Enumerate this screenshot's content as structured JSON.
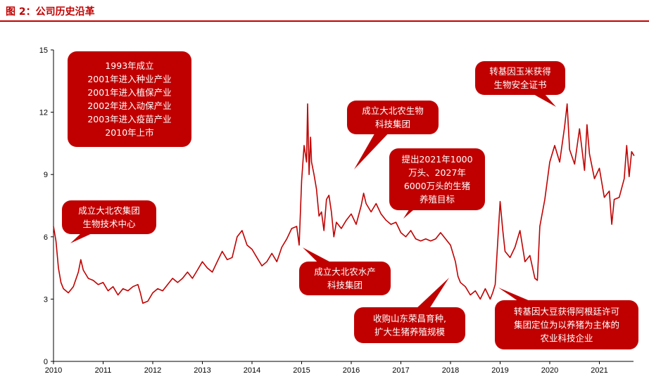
{
  "header": {
    "title": "图 2：公司历史沿革"
  },
  "chart_data": {
    "type": "line",
    "xlabel": "",
    "ylabel": "",
    "xlim": [
      2010.0,
      2021.72
    ],
    "ylim": [
      0,
      15
    ],
    "x_ticks": [
      "2010",
      "2011",
      "2012",
      "2013",
      "2014",
      "2015",
      "2016",
      "2017",
      "2018",
      "2019",
      "2020",
      "2021"
    ],
    "y_ticks": [
      "0",
      "3",
      "6",
      "9",
      "12",
      "15"
    ],
    "legend": "none",
    "grid": false,
    "line_color": "#c00000",
    "series": [
      {
        "x": [
          2010.0,
          2010.05,
          2010.1,
          2010.15,
          2010.2,
          2010.3,
          2010.4,
          2010.5,
          2010.55,
          2010.6,
          2010.7,
          2010.8,
          2010.9,
          2011.0,
          2011.1,
          2011.2,
          2011.3,
          2011.4,
          2011.5,
          2011.6,
          2011.7,
          2011.75,
          2011.8,
          2011.9,
          2012.0,
          2012.1,
          2012.2,
          2012.3,
          2012.4,
          2012.5,
          2012.6,
          2012.7,
          2012.8,
          2012.9,
          2013.0,
          2013.1,
          2013.2,
          2013.3,
          2013.4,
          2013.5,
          2013.6,
          2013.7,
          2013.8,
          2013.9,
          2014.0,
          2014.1,
          2014.2,
          2014.3,
          2014.4,
          2014.5,
          2014.6,
          2014.7,
          2014.8,
          2014.9,
          2014.95,
          2015.0,
          2015.05,
          2015.1,
          2015.12,
          2015.15,
          2015.18,
          2015.2,
          2015.25,
          2015.3,
          2015.35,
          2015.4,
          2015.45,
          2015.5,
          2015.55,
          2015.6,
          2015.65,
          2015.7,
          2015.8,
          2015.9,
          2016.0,
          2016.1,
          2016.2,
          2016.25,
          2016.3,
          2016.4,
          2016.5,
          2016.6,
          2016.7,
          2016.8,
          2016.9,
          2017.0,
          2017.1,
          2017.2,
          2017.3,
          2017.4,
          2017.5,
          2017.6,
          2017.7,
          2017.8,
          2017.9,
          2018.0,
          2018.1,
          2018.15,
          2018.2,
          2018.3,
          2018.4,
          2018.5,
          2018.6,
          2018.7,
          2018.8,
          2018.85,
          2018.9,
          2019.0,
          2019.05,
          2019.1,
          2019.2,
          2019.3,
          2019.4,
          2019.5,
          2019.6,
          2019.7,
          2019.75,
          2019.8,
          2019.9,
          2020.0,
          2020.1,
          2020.2,
          2020.3,
          2020.35,
          2020.4,
          2020.5,
          2020.6,
          2020.7,
          2020.75,
          2020.8,
          2020.9,
          2021.0,
          2021.1,
          2021.2,
          2021.25,
          2021.3,
          2021.4,
          2021.5,
          2021.55,
          2021.6,
          2021.65,
          2021.7
        ],
        "values": [
          6.5,
          5.8,
          4.5,
          3.8,
          3.5,
          3.3,
          3.6,
          4.3,
          4.9,
          4.4,
          4.0,
          3.9,
          3.7,
          3.8,
          3.4,
          3.6,
          3.2,
          3.5,
          3.4,
          3.6,
          3.7,
          3.3,
          2.8,
          2.9,
          3.3,
          3.5,
          3.4,
          3.7,
          4.0,
          3.8,
          4.0,
          4.3,
          4.0,
          4.4,
          4.8,
          4.5,
          4.3,
          4.8,
          5.3,
          4.9,
          5.0,
          6.0,
          6.3,
          5.6,
          5.4,
          5.0,
          4.6,
          4.8,
          5.2,
          4.8,
          5.5,
          5.9,
          6.4,
          6.5,
          5.6,
          8.7,
          10.4,
          9.6,
          12.4,
          9.0,
          10.8,
          9.6,
          9.0,
          8.3,
          7.0,
          7.2,
          6.3,
          7.8,
          8.0,
          7.2,
          6.0,
          6.7,
          6.4,
          6.8,
          7.1,
          6.6,
          7.5,
          8.1,
          7.6,
          7.2,
          7.6,
          7.1,
          6.8,
          6.6,
          6.7,
          6.2,
          6.0,
          6.3,
          5.9,
          5.8,
          5.9,
          5.8,
          5.9,
          6.2,
          5.9,
          5.6,
          4.8,
          4.1,
          3.8,
          3.6,
          3.2,
          3.4,
          3.0,
          3.5,
          3.0,
          3.3,
          3.7,
          7.7,
          6.4,
          5.3,
          5.0,
          5.5,
          6.3,
          4.8,
          5.1,
          4.0,
          3.9,
          6.5,
          7.8,
          9.6,
          10.4,
          9.6,
          11.3,
          12.4,
          10.2,
          9.5,
          11.2,
          9.2,
          11.4,
          10.0,
          8.8,
          9.3,
          7.9,
          8.2,
          6.6,
          7.8,
          7.9,
          8.8,
          10.4,
          8.9,
          10.1,
          9.9
        ]
      }
    ],
    "annotations": [
      {
        "lines": [
          "1993年成立",
          "2001年进入种业产业",
          "2001年进入植保产业",
          "2002年进入动保产业",
          "2003年进入疫苗产业",
          "2010年上市"
        ]
      },
      {
        "lines": [
          "成立大北农集团",
          "生物技术中心"
        ]
      },
      {
        "lines": [
          "成立大北农水产",
          "科技集团"
        ]
      },
      {
        "lines": [
          "成立大北农生物",
          "科技集团"
        ]
      },
      {
        "lines": [
          "提出2021年1000",
          "万头、2027年",
          "6000万头的生猪",
          "养殖目标"
        ]
      },
      {
        "lines": [
          "收购山东荣昌育种,",
          "扩大生猪养殖规模"
        ]
      },
      {
        "lines": [
          "转基因玉米获得",
          "生物安全证书"
        ]
      },
      {
        "lines": [
          "转基因大豆获得阿根廷许可",
          "集团定位为以养猪为主体的",
          "农业科技企业"
        ]
      }
    ]
  }
}
